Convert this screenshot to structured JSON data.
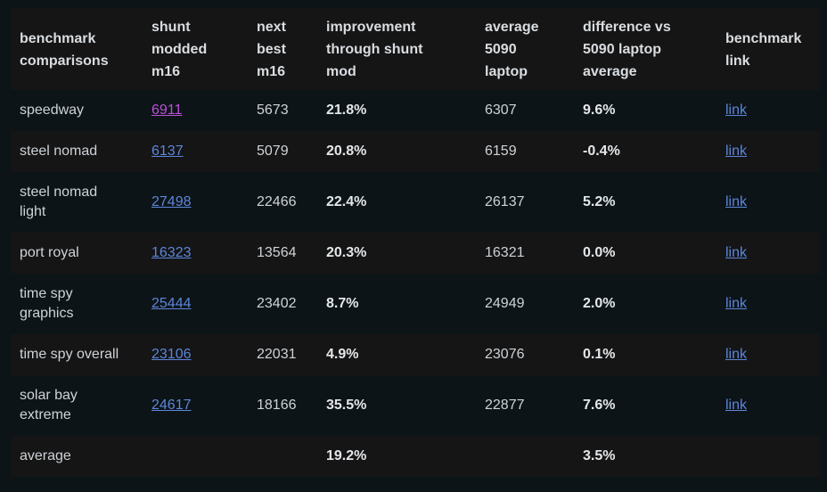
{
  "colors": {
    "page_background": "#0d1417",
    "row_stripe": "#151516",
    "header_text": "#d9dde0",
    "body_text": "#ced3d6",
    "bold_text": "#e4e7e9",
    "link_blue": "#5c86d9",
    "link_visited_purple": "#bc50d9"
  },
  "table": {
    "columns": [
      {
        "key": "name",
        "label": "benchmark\ncomparisons",
        "type": "text"
      },
      {
        "key": "modded",
        "label": "shunt\nmodded\nm16",
        "type": "link"
      },
      {
        "key": "next",
        "label": "next\nbest\nm16",
        "type": "text"
      },
      {
        "key": "improvement",
        "label": "improvement\nthrough shunt\nmod",
        "type": "text",
        "bold": true
      },
      {
        "key": "avg",
        "label": "average\n5090\nlaptop",
        "type": "text"
      },
      {
        "key": "diff",
        "label": "difference vs\n5090 laptop\naverage",
        "type": "text",
        "bold": true
      },
      {
        "key": "link",
        "label": "benchmark\nlink",
        "type": "link"
      }
    ],
    "rows": [
      {
        "name": "speedway",
        "modded": "6911",
        "visited": true,
        "next": "5673",
        "improvement": "21.8%",
        "avg": "6307",
        "diff": "9.6%",
        "link": "link"
      },
      {
        "name": "steel nomad",
        "modded": "6137",
        "next": "5079",
        "improvement": "20.8%",
        "avg": "6159",
        "diff": "-0.4%",
        "link": "link"
      },
      {
        "name": "steel nomad\nlight",
        "modded": "27498",
        "next": "22466",
        "improvement": "22.4%",
        "avg": "26137",
        "diff": "5.2%",
        "link": "link"
      },
      {
        "name": "port royal",
        "modded": "16323",
        "next": "13564",
        "improvement": "20.3%",
        "avg": "16321",
        "diff": "0.0%",
        "link": "link"
      },
      {
        "name": "time spy\ngraphics",
        "modded": "25444",
        "next": "23402",
        "improvement": "8.7%",
        "avg": "24949",
        "diff": "2.0%",
        "link": "link"
      },
      {
        "name": "time spy overall",
        "modded": "23106",
        "next": "22031",
        "improvement": "4.9%",
        "avg": "23076",
        "diff": "0.1%",
        "link": "link"
      },
      {
        "name": "solar bay\nextreme",
        "modded": "24617",
        "next": "18166",
        "improvement": "35.5%",
        "avg": "22877",
        "diff": "7.6%",
        "link": "link"
      },
      {
        "name": "average",
        "modded": "",
        "next": "",
        "improvement": "19.2%",
        "avg": "",
        "diff": "3.5%",
        "link": ""
      }
    ]
  }
}
